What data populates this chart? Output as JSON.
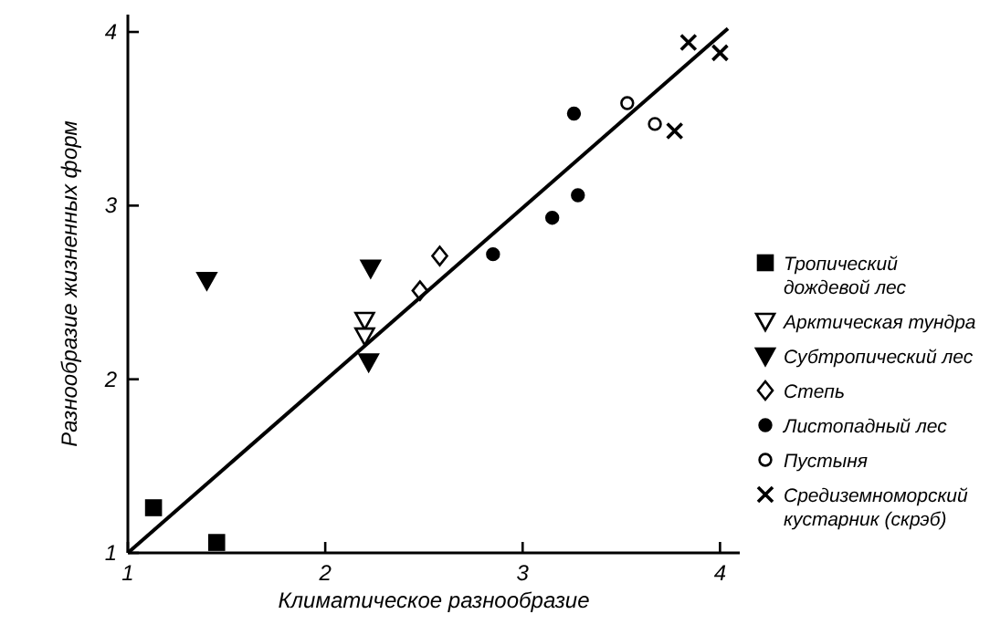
{
  "chart_data": {
    "type": "scatter",
    "xlabel": "Климатическое разнообразие",
    "ylabel": "Разнообразие жизненных форм",
    "xlim": [
      1,
      4.1
    ],
    "ylim": [
      1,
      4.1
    ],
    "xticks": [
      1,
      2,
      3,
      4
    ],
    "yticks": [
      1,
      2,
      3,
      4
    ],
    "grid": false,
    "legend": "right",
    "series": [
      {
        "name": "Тропический дождевой лес",
        "color": "#000000",
        "marker": "square",
        "x": [
          1.13,
          1.45
        ],
        "values": [
          1.26,
          1.06
        ]
      },
      {
        "name": "Арктическая тундра",
        "color": "#ffffff",
        "marker": "triangle",
        "x": [
          2.2,
          2.2
        ],
        "values": [
          2.34,
          2.25
        ]
      },
      {
        "name": "Субтропический лес",
        "color": "#000000",
        "marker": "triangle",
        "x": [
          1.4,
          2.23,
          2.22
        ],
        "values": [
          2.57,
          2.64,
          2.1
        ]
      },
      {
        "name": "Степь",
        "color": "#ffffff",
        "marker": "diamond",
        "x": [
          2.48,
          2.58
        ],
        "values": [
          2.51,
          2.71
        ]
      },
      {
        "name": "Листопадный лес",
        "color": "#000000",
        "marker": "circle",
        "x": [
          2.85,
          3.15,
          3.28,
          3.26
        ],
        "values": [
          2.72,
          2.93,
          3.06,
          3.53
        ]
      },
      {
        "name": "Пустыня",
        "color": "#ffffff",
        "marker": "circle",
        "x": [
          3.53,
          3.67
        ],
        "values": [
          3.59,
          3.47
        ]
      },
      {
        "name": "Средиземноморский кустарник (скрэб)",
        "color": "#000000",
        "marker": "cross",
        "x": [
          3.84,
          4.0,
          3.77
        ],
        "values": [
          3.94,
          3.88,
          3.43
        ]
      },
      {
        "type": "line",
        "color": "#000000",
        "marker": "none",
        "x": [
          1,
          4.04
        ],
        "values": [
          1,
          4.02
        ]
      }
    ]
  }
}
